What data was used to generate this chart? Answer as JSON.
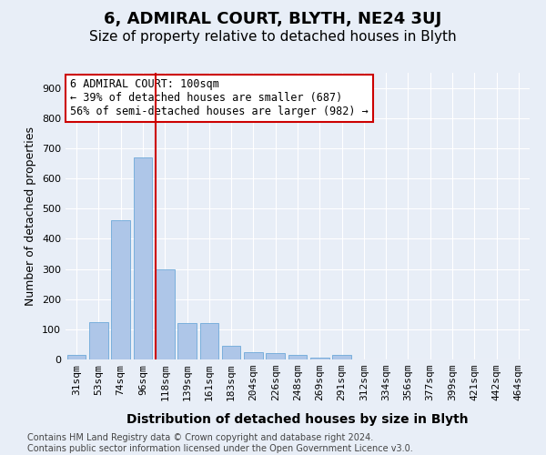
{
  "title": "6, ADMIRAL COURT, BLYTH, NE24 3UJ",
  "subtitle": "Size of property relative to detached houses in Blyth",
  "xlabel": "Distribution of detached houses by size in Blyth",
  "ylabel": "Number of detached properties",
  "categories": [
    "31sqm",
    "53sqm",
    "74sqm",
    "96sqm",
    "118sqm",
    "139sqm",
    "161sqm",
    "183sqm",
    "204sqm",
    "226sqm",
    "248sqm",
    "269sqm",
    "291sqm",
    "312sqm",
    "334sqm",
    "356sqm",
    "377sqm",
    "399sqm",
    "421sqm",
    "442sqm",
    "464sqm"
  ],
  "values": [
    15,
    125,
    460,
    670,
    300,
    120,
    120,
    45,
    25,
    20,
    15,
    5,
    15,
    0,
    0,
    0,
    0,
    0,
    0,
    0,
    0
  ],
  "bar_color": "#aec6e8",
  "bar_edge_color": "#5a9fd4",
  "vline_index": 4,
  "vline_color": "#cc0000",
  "annotation_line1": "6 ADMIRAL COURT: 100sqm",
  "annotation_line2": "← 39% of detached houses are smaller (687)",
  "annotation_line3": "56% of semi-detached houses are larger (982) →",
  "annotation_box_color": "#ffffff",
  "annotation_box_edge": "#cc0000",
  "ylim": [
    0,
    950
  ],
  "yticks": [
    0,
    100,
    200,
    300,
    400,
    500,
    600,
    700,
    800,
    900
  ],
  "bg_color": "#e8eef7",
  "footer": "Contains HM Land Registry data © Crown copyright and database right 2024.\nContains public sector information licensed under the Open Government Licence v3.0.",
  "title_fontsize": 13,
  "subtitle_fontsize": 11,
  "xlabel_fontsize": 10,
  "ylabel_fontsize": 9,
  "tick_fontsize": 8,
  "ann_fontsize": 8.5,
  "footer_fontsize": 7
}
